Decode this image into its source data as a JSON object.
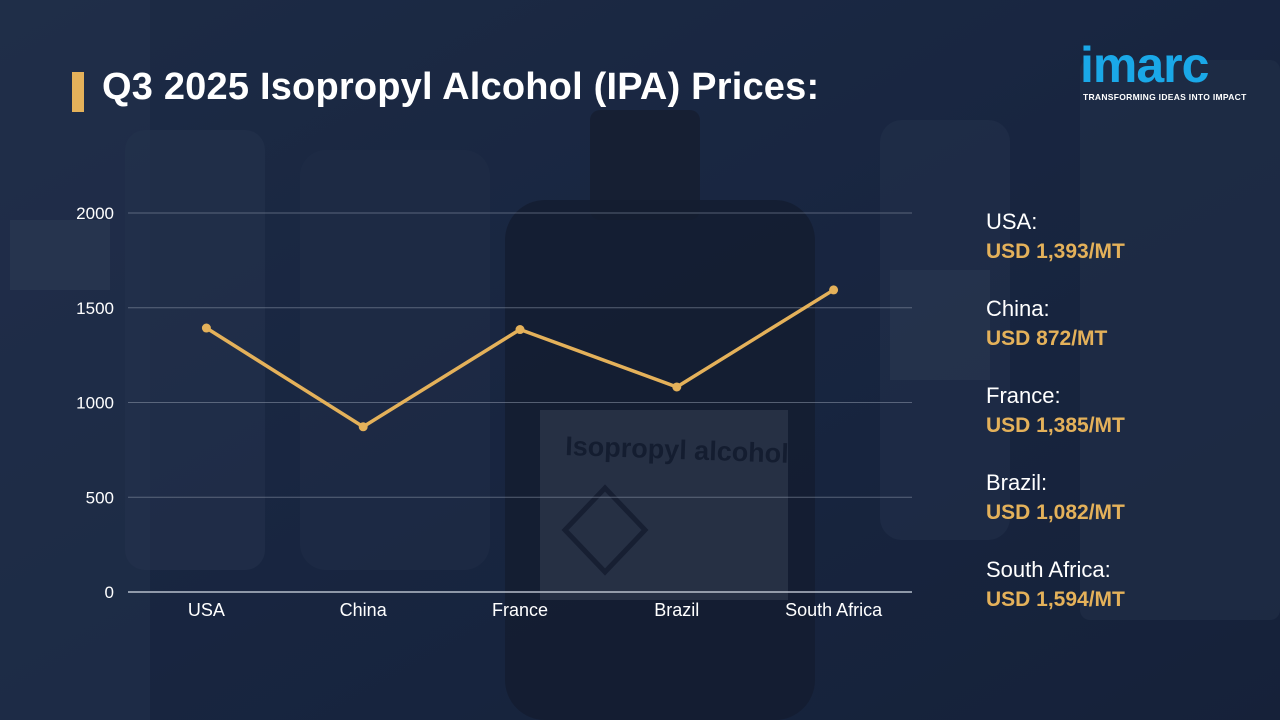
{
  "header": {
    "title": "Q3 2025 Isopropyl Alcohol (IPA) Prices:"
  },
  "logo": {
    "wordmark": "imarc",
    "tagline": "TRANSFORMING IDEAS INTO IMPACT"
  },
  "background": {
    "label_text": "Isopropyl alcohol"
  },
  "colors": {
    "accent": "#e4b15a",
    "logo_blue": "#1aa8e8",
    "background": "#1a2740"
  },
  "chart_data": {
    "type": "line",
    "categories": [
      "USA",
      "China",
      "France",
      "Brazil",
      "South Africa"
    ],
    "series": [
      {
        "values": [
          1393,
          872,
          1385,
          1082,
          1594
        ]
      }
    ],
    "title": "",
    "xlabel": "",
    "ylabel": "",
    "ylim": [
      0,
      2000
    ],
    "yticks": [
      "0",
      "500",
      "1000",
      "1500",
      "2000"
    ],
    "grid": true
  },
  "legend": {
    "items": [
      {
        "label": "USA:",
        "value": "USD 1,393/MT"
      },
      {
        "label": "China:",
        "value": "USD 872/MT"
      },
      {
        "label": "France:",
        "value": "USD 1,385/MT"
      },
      {
        "label": "Brazil:",
        "value": "USD 1,082/MT"
      },
      {
        "label": "South Africa:",
        "value": "USD 1,594/MT"
      }
    ]
  }
}
